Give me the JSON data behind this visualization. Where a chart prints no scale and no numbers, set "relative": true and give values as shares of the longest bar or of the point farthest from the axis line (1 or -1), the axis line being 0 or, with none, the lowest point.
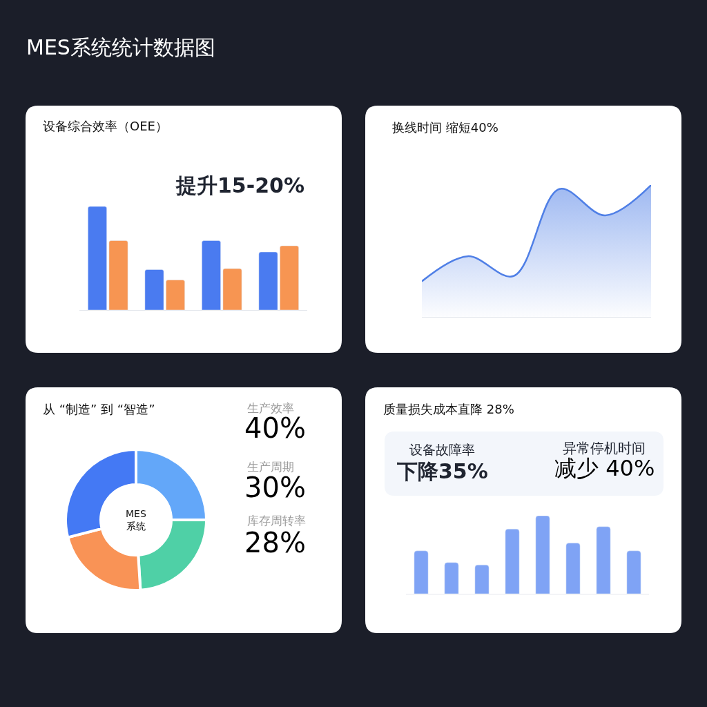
{
  "chart_data": [
    {
      "type": "other",
      "title": "MES系统统计数据图"
    },
    {
      "type": "bar",
      "title": "设备综合效率（OEE）",
      "categories": [
        null,
        null,
        null,
        null
      ],
      "relative": true,
      "series": [
        {
          "color": "#4a7bf0",
          "values": [
            1,
            0.39,
            0.67,
            0.56
          ]
        },
        {
          "color": "#f79552",
          "values": [
            0.67,
            0.29,
            0.4,
            0.62
          ]
        }
      ],
      "annotations": [
        "提升15-20%"
      ]
    },
    {
      "type": "area",
      "title": "换线时间 缩短40%",
      "categories": [
        null,
        null,
        null,
        null,
        null,
        null
      ],
      "relative": true,
      "series": [
        {
          "color": "#4f7fe6",
          "values": [
            0.27,
            0.46,
            0.31,
            0.97,
            0.77,
            1
          ]
        }
      ]
    },
    {
      "type": "donut",
      "title": "从 “制造” 到 “智造”",
      "categories": [
        null,
        null,
        null,
        null
      ],
      "values": [
        25,
        24,
        22,
        29
      ],
      "colors": [
        "#63a7f9",
        "#4fd0a6",
        "#f99356",
        "#4479f4"
      ],
      "annotations": [
        "MES\n系统",
        "生产效率",
        "40%",
        "生产周期",
        "30%",
        "库存周转率",
        "28%"
      ]
    },
    {
      "type": "bar",
      "title": "质量损失成本直降 28%",
      "categories": [
        null,
        null,
        null,
        null,
        null,
        null,
        null,
        null
      ],
      "relative": true,
      "series": [
        {
          "color": "#7fa3f5",
          "values": [
            0.55,
            0.4,
            0.37,
            0.83,
            1,
            0.65,
            0.86,
            0.55
          ]
        }
      ],
      "annotations": [
        "设备故障率",
        "下降35%",
        "异常停机时间",
        "减少 40%"
      ]
    }
  ]
}
